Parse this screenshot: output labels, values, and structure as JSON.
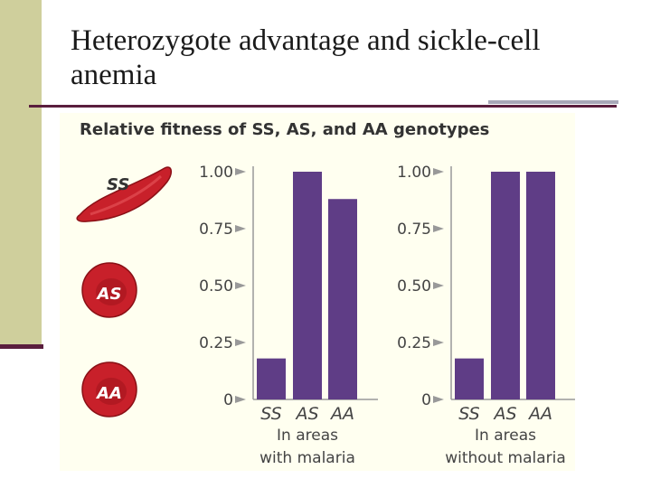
{
  "slide": {
    "title": "Heterozygote advantage and sickle-cell anemia"
  },
  "figure": {
    "heading": "Relative fitness of SS, AS, and AA genotypes",
    "cells": [
      {
        "label": "SS",
        "shape": "sickle"
      },
      {
        "label": "AS",
        "shape": "round"
      },
      {
        "label": "AA",
        "shape": "round"
      }
    ]
  },
  "colors": {
    "bar": "#5f3d86",
    "cell": "#c8202a",
    "cell_dark": "#8a1016",
    "axis": "#999999",
    "sidebar": "#cfcf9c",
    "rule": "#5a1e3d"
  },
  "chart_data": [
    {
      "type": "bar",
      "categories": [
        "SS",
        "AS",
        "AA"
      ],
      "values": [
        0.18,
        1.0,
        0.88
      ],
      "caption": [
        "In areas",
        "with malaria"
      ],
      "ylim": [
        0,
        1
      ],
      "yticks": [
        "0",
        "0.25",
        "0.50",
        "0.75",
        "1.00"
      ],
      "grid": false
    },
    {
      "type": "bar",
      "categories": [
        "SS",
        "AS",
        "AA"
      ],
      "values": [
        0.18,
        1.0,
        1.0
      ],
      "caption": [
        "In areas",
        "without malaria"
      ],
      "ylim": [
        0,
        1
      ],
      "yticks": [
        "0",
        "0.25",
        "0.50",
        "0.75",
        "1.00"
      ],
      "grid": false
    }
  ]
}
